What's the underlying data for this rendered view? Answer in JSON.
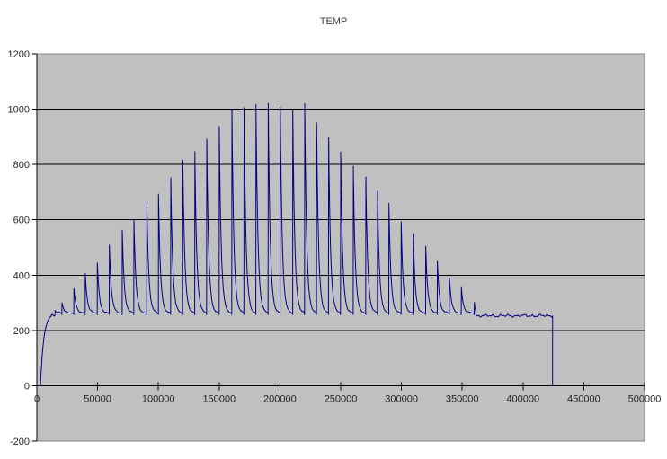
{
  "title": "TEMP",
  "colors": {
    "page_bg": "#ffffff",
    "plot_bg": "#c0c0c0",
    "plot_border": "#848484",
    "gridline": "#000000",
    "axis": "#000000",
    "tick_label": "#262626",
    "title_text": "#404040",
    "series": "#000080"
  },
  "chart_data": {
    "type": "line",
    "title": "TEMP",
    "xlabel": "",
    "ylabel": "",
    "legend": false,
    "grid": true,
    "xlim": [
      0,
      500000
    ],
    "ylim": [
      -200,
      1200
    ],
    "x_ticks": [
      0,
      50000,
      100000,
      150000,
      200000,
      250000,
      300000,
      350000,
      400000,
      450000,
      500000
    ],
    "y_ticks": [
      -200,
      0,
      200,
      400,
      600,
      800,
      1000,
      1200
    ],
    "series": [
      {
        "name": "TEMP",
        "color": "#000080",
        "description": "Temperature trace: rises from 0 to ~250 baseline, periodic sharp spikes (~every 10000 x-units) whose peaks ramp up to ~1020 near x=190000 then decay back, flat noisy ~253 tail, vertical drop to 0 at x=424300",
        "baseline": 254,
        "decay_floor": 263,
        "start_ramp": {
          "from_x": 3000,
          "to_x": 12000,
          "from_v": 0,
          "to_v": 252
        },
        "spikes": [
          [
            15000,
            272
          ],
          [
            20700,
            300
          ],
          [
            30500,
            352
          ],
          [
            39900,
            406
          ],
          [
            49800,
            444
          ],
          [
            59700,
            509
          ],
          [
            70300,
            563
          ],
          [
            79900,
            601
          ],
          [
            90500,
            660
          ],
          [
            100100,
            693
          ],
          [
            110200,
            752
          ],
          [
            120100,
            815
          ],
          [
            130000,
            847
          ],
          [
            139800,
            892
          ],
          [
            150100,
            938
          ],
          [
            160500,
            1000
          ],
          [
            170500,
            1005
          ],
          [
            180300,
            1016
          ],
          [
            190400,
            1021
          ],
          [
            200300,
            1007
          ],
          [
            210600,
            994
          ],
          [
            220400,
            1020
          ],
          [
            230200,
            951
          ],
          [
            240100,
            897
          ],
          [
            250000,
            845
          ],
          [
            260400,
            794
          ],
          [
            270700,
            755
          ],
          [
            280300,
            704
          ],
          [
            289700,
            660
          ],
          [
            299800,
            593
          ],
          [
            309700,
            550
          ],
          [
            320000,
            505
          ],
          [
            329600,
            450
          ],
          [
            339500,
            390
          ],
          [
            349300,
            355
          ],
          [
            360000,
            301
          ]
        ],
        "tail": {
          "from_x": 361500,
          "to_x": 424300,
          "value": 253
        },
        "end_drop": {
          "x": 424300,
          "to_v": 0
        }
      }
    ]
  }
}
